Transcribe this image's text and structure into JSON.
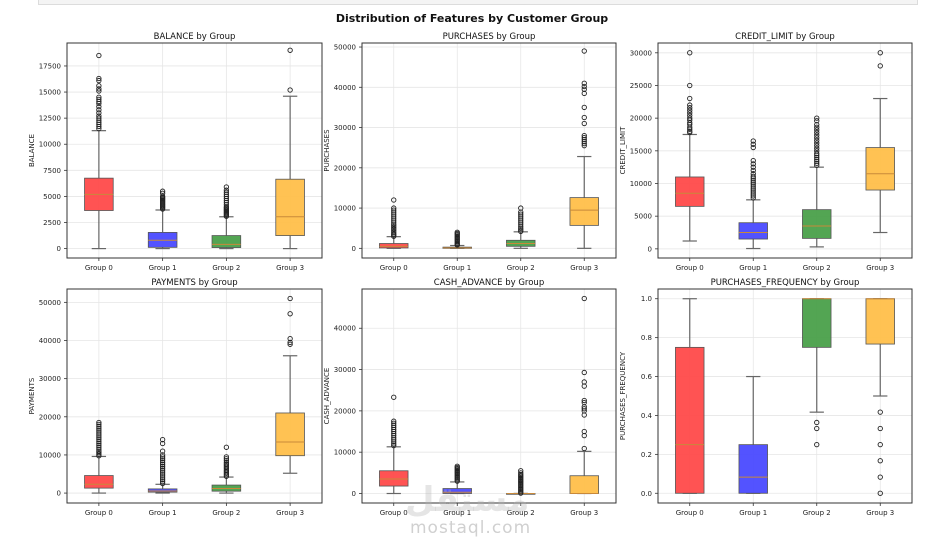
{
  "suptitle": "Distribution of Features by Customer Group",
  "watermark": {
    "arabic": "مستقل",
    "latin": "mostaql.com"
  },
  "chart_data": [
    {
      "type": "box",
      "title": "BALANCE by Group",
      "xlabel": "",
      "ylabel": "BALANCE",
      "categories": [
        "Group 0",
        "Group 1",
        "Group 2",
        "Group 3"
      ],
      "colors": [
        "#ff4a4a",
        "#4a4aff",
        "#4aa04a",
        "#ffbf4a"
      ],
      "ylim": [
        -900,
        19700
      ],
      "yticks": [
        0,
        2500,
        5000,
        7500,
        10000,
        12500,
        15000,
        17500
      ],
      "grid": true,
      "boxes": [
        {
          "whislo": 0,
          "q1": 3650,
          "med": 5200,
          "q3": 6750,
          "whishi": 11300,
          "fliers": [
            11500,
            11700,
            11900,
            12100,
            12300,
            12500,
            12700,
            13000,
            13300,
            13600,
            13900,
            14100,
            14300,
            14500,
            15100,
            15300,
            15600,
            16100,
            16300,
            18500
          ]
        },
        {
          "whislo": 0,
          "q1": 120,
          "med": 800,
          "q3": 1550,
          "whishi": 3700,
          "fliers": [
            3800,
            3900,
            4000,
            4100,
            4200,
            4300,
            4400,
            4500,
            4600,
            4700,
            4800,
            4900,
            5000,
            5300,
            5500
          ]
        },
        {
          "whislo": 0,
          "q1": 100,
          "med": 400,
          "q3": 1250,
          "whishi": 3050,
          "fliers": [
            3100,
            3200,
            3300,
            3400,
            3500,
            3600,
            3700,
            3800,
            3900,
            4000,
            4200,
            4400,
            4600,
            4800,
            5000,
            5200,
            5400,
            5600,
            5900
          ]
        },
        {
          "whislo": 0,
          "q1": 1250,
          "med": 3050,
          "q3": 6650,
          "whishi": 14600,
          "fliers": [
            15200,
            19000
          ]
        }
      ]
    },
    {
      "type": "box",
      "title": "PURCHASES by Group",
      "xlabel": "",
      "ylabel": "PURCHASES",
      "categories": [
        "Group 0",
        "Group 1",
        "Group 2",
        "Group 3"
      ],
      "colors": [
        "#ff4a4a",
        "#4a4aff",
        "#4aa04a",
        "#ffbf4a"
      ],
      "ylim": [
        -2400,
        51000
      ],
      "yticks": [
        0,
        10000,
        20000,
        30000,
        40000,
        50000
      ],
      "grid": true,
      "boxes": [
        {
          "whislo": 0,
          "q1": 100,
          "med": 500,
          "q3": 1200,
          "whishi": 2900,
          "fliers": [
            3000,
            3300,
            3600,
            4000,
            4400,
            4800,
            5200,
            5600,
            6000,
            6500,
            7000,
            7500,
            8000,
            8500,
            9000,
            9500,
            10000,
            12000
          ]
        },
        {
          "whislo": 0,
          "q1": 0,
          "med": 100,
          "q3": 300,
          "whishi": 700,
          "fliers": [
            800,
            1000,
            1300,
            1600,
            1900,
            2200,
            2500,
            2800,
            3100,
            3400,
            3700,
            4000
          ]
        },
        {
          "whislo": 0,
          "q1": 500,
          "med": 1200,
          "q3": 2000,
          "whishi": 4100,
          "fliers": [
            4200,
            4600,
            5000,
            5500,
            6000,
            6500,
            7000,
            7500,
            8000,
            8500,
            9000,
            10000
          ]
        },
        {
          "whislo": 0,
          "q1": 5700,
          "med": 9500,
          "q3": 12600,
          "whishi": 22800,
          "fliers": [
            25500,
            26000,
            26500,
            27000,
            27500,
            28000,
            31000,
            32500,
            35000,
            38500,
            39500,
            40200,
            41000,
            49000
          ]
        }
      ]
    },
    {
      "type": "box",
      "title": "CREDIT_LIMIT by Group",
      "xlabel": "",
      "ylabel": "CREDIT_LIMIT",
      "categories": [
        "Group 0",
        "Group 1",
        "Group 2",
        "Group 3"
      ],
      "colors": [
        "#ff4a4a",
        "#4a4aff",
        "#4aa04a",
        "#ffbf4a"
      ],
      "ylim": [
        -1400,
        31500
      ],
      "yticks": [
        0,
        5000,
        10000,
        15000,
        20000,
        25000,
        30000
      ],
      "grid": true,
      "boxes": [
        {
          "whislo": 1200,
          "q1": 6500,
          "med": 8500,
          "q3": 11000,
          "whishi": 17500,
          "fliers": [
            17800,
            18000,
            18300,
            18600,
            19000,
            19300,
            19700,
            20000,
            20400,
            20800,
            21200,
            21600,
            22000,
            23000,
            25000,
            30000
          ]
        },
        {
          "whislo": 50,
          "q1": 1500,
          "med": 2500,
          "q3": 4000,
          "whishi": 7500,
          "fliers": [
            7800,
            8100,
            8400,
            8700,
            9000,
            9300,
            9600,
            9900,
            10200,
            10500,
            10800,
            11100,
            11500,
            12000,
            12500,
            13000,
            13500,
            15500,
            16000,
            16500
          ]
        },
        {
          "whislo": 300,
          "q1": 1600,
          "med": 3500,
          "q3": 6000,
          "whishi": 12500,
          "fliers": [
            12800,
            13100,
            13400,
            13700,
            14000,
            14300,
            14600,
            15000,
            15400,
            15800,
            16200,
            16600,
            17000,
            17400,
            17800,
            18200,
            18600,
            19000,
            19600,
            20000
          ]
        },
        {
          "whislo": 2500,
          "q1": 9000,
          "med": 11500,
          "q3": 15500,
          "whishi": 23000,
          "fliers": [
            28000,
            30000
          ]
        }
      ]
    },
    {
      "type": "box",
      "title": "PAYMENTS by Group",
      "xlabel": "",
      "ylabel": "PAYMENTS",
      "categories": [
        "Group 0",
        "Group 1",
        "Group 2",
        "Group 3"
      ],
      "colors": [
        "#ff4a4a",
        "#4a4aff",
        "#4aa04a",
        "#ffbf4a"
      ],
      "ylim": [
        -2600,
        53500
      ],
      "yticks": [
        0,
        10000,
        20000,
        30000,
        40000,
        50000
      ],
      "grid": true,
      "boxes": [
        {
          "whislo": 0,
          "q1": 1300,
          "med": 2300,
          "q3": 4600,
          "whishi": 9600,
          "fliers": [
            9800,
            10200,
            10600,
            11000,
            11500,
            12000,
            12500,
            13000,
            13500,
            14000,
            14500,
            15000,
            15500,
            16000,
            16500,
            17000,
            17500,
            18000,
            18500
          ]
        },
        {
          "whislo": 0,
          "q1": 250,
          "med": 550,
          "q3": 1100,
          "whishi": 2300,
          "fliers": [
            2500,
            3000,
            3500,
            4000,
            4500,
            5000,
            5500,
            6000,
            6500,
            7000,
            7500,
            8000,
            8500,
            9000,
            9500,
            10000,
            11000,
            13000,
            14000
          ]
        },
        {
          "whislo": 0,
          "q1": 500,
          "med": 1200,
          "q3": 2100,
          "whishi": 4200,
          "fliers": [
            4400,
            4800,
            5200,
            5600,
            6000,
            6400,
            6800,
            7200,
            7600,
            8000,
            8500,
            9000,
            9500,
            12000
          ]
        },
        {
          "whislo": 5200,
          "q1": 9800,
          "med": 13400,
          "q3": 21000,
          "whishi": 36000,
          "fliers": [
            39000,
            39500,
            40500,
            47000,
            51000
          ]
        }
      ]
    },
    {
      "type": "box",
      "title": "CASH_ADVANCE by Group",
      "xlabel": "",
      "ylabel": "CASH_ADVANCE",
      "categories": [
        "Group 0",
        "Group 1",
        "Group 2",
        "Group 3"
      ],
      "colors": [
        "#ff4a4a",
        "#4a4aff",
        "#4aa04a",
        "#ffbf4a"
      ],
      "ylim": [
        -2300,
        49500
      ],
      "yticks": [
        0,
        10000,
        20000,
        30000,
        40000
      ],
      "grid": true,
      "boxes": [
        {
          "whislo": 0,
          "q1": 1800,
          "med": 3500,
          "q3": 5500,
          "whishi": 11300,
          "fliers": [
            11600,
            12000,
            12500,
            13000,
            13500,
            14000,
            14500,
            15000,
            15500,
            16000,
            16500,
            17000,
            17500,
            23300
          ]
        },
        {
          "whislo": 0,
          "q1": 0,
          "med": 300,
          "q3": 1200,
          "whishi": 2800,
          "fliers": [
            3000,
            3300,
            3600,
            3900,
            4200,
            4500,
            4800,
            5100,
            5400,
            5700,
            6000,
            6300,
            6600
          ]
        },
        {
          "whislo": 0,
          "q1": 0,
          "med": 0,
          "q3": 0,
          "whishi": 0,
          "fliers": [
            100,
            400,
            700,
            1000,
            1300,
            1600,
            1900,
            2200,
            2500,
            2800,
            3100,
            3400,
            3700,
            4000,
            4300,
            4600,
            5000,
            5500
          ]
        },
        {
          "whislo": 0,
          "q1": 0,
          "med": 0,
          "q3": 4300,
          "whishi": 10200,
          "fliers": [
            10900,
            14000,
            15000,
            19000,
            20000,
            20500,
            21000,
            22000,
            22500,
            26000,
            27000,
            29300,
            47200
          ]
        }
      ]
    },
    {
      "type": "box",
      "title": "PURCHASES_FREQUENCY by Group",
      "xlabel": "",
      "ylabel": "PURCHASES_FREQUENCY",
      "categories": [
        "Group 0",
        "Group 1",
        "Group 2",
        "Group 3"
      ],
      "colors": [
        "#ff4a4a",
        "#4a4aff",
        "#4aa04a",
        "#ffbf4a"
      ],
      "ylim": [
        -0.05,
        1.05
      ],
      "yticks": [
        0.0,
        0.2,
        0.4,
        0.6,
        0.8,
        1.0
      ],
      "ytick_format": 1,
      "grid": true,
      "boxes": [
        {
          "whislo": 0.0,
          "q1": 0.0,
          "med": 0.25,
          "q3": 0.75,
          "whishi": 1.0,
          "fliers": []
        },
        {
          "whislo": 0.0,
          "q1": 0.0,
          "med": 0.083,
          "q3": 0.25,
          "whishi": 0.6,
          "fliers": []
        },
        {
          "whislo": 0.417,
          "q1": 0.75,
          "med": 1.0,
          "q3": 1.0,
          "whishi": 1.0,
          "fliers": [
            0.25,
            0.333,
            0.364
          ]
        },
        {
          "whislo": 0.5,
          "q1": 0.767,
          "med": 1.0,
          "q3": 1.0,
          "whishi": 1.0,
          "fliers": [
            0.0,
            0.083,
            0.167,
            0.25,
            0.333,
            0.417
          ]
        }
      ]
    }
  ]
}
